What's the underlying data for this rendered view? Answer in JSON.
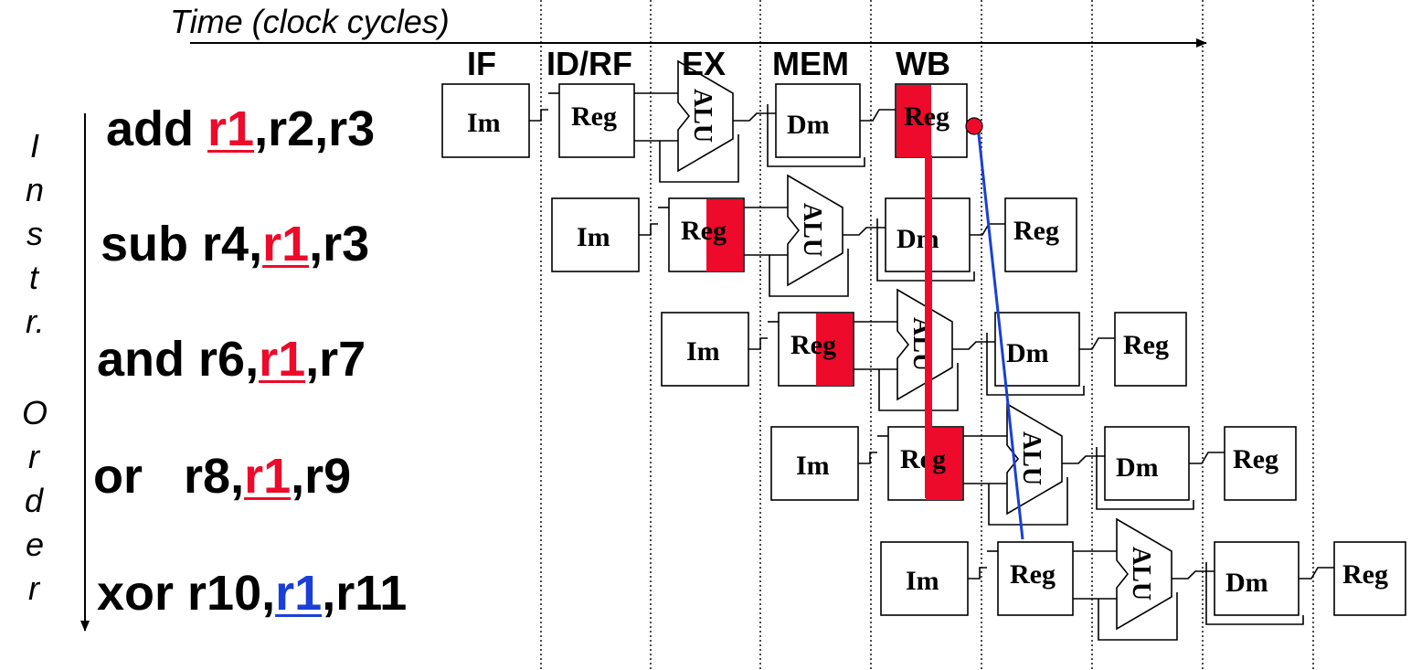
{
  "time_axis_label": "Time (clock cycles)",
  "stage_labels": [
    "IF",
    "ID/RF",
    "EX",
    "MEM",
    "WB"
  ],
  "order_label_chars": [
    "I",
    "n",
    "s",
    "t",
    "r.",
    "O",
    "r",
    "d",
    "e",
    "r"
  ],
  "block_labels": {
    "imem": "Im",
    "reg": "Reg",
    "alu": "ALU",
    "dmem": "Dm"
  },
  "colors": {
    "hazard_red": "#ee0a2a",
    "forward_blue": "#1a3fd6",
    "text": "#000000"
  },
  "instructions": [
    {
      "op": "add ",
      "pre": "",
      "reg": "r1",
      "post": ",r2,r3",
      "reg_color": "#ee0a2a"
    },
    {
      "op": "sub ",
      "pre": "r4,",
      "reg": "r1",
      "post": ",r3",
      "reg_color": "#ee0a2a"
    },
    {
      "op": "and ",
      "pre": "r6,",
      "reg": "r1",
      "post": ",r7",
      "reg_color": "#ee0a2a"
    },
    {
      "op": "or   ",
      "pre": "r8,",
      "reg": "r1",
      "post": ",r9",
      "reg_color": "#ee0a2a"
    },
    {
      "op": "xor ",
      "pre": "r10,",
      "reg": "r1",
      "post": ",r11",
      "reg_color": "#1a3fd6"
    }
  ]
}
